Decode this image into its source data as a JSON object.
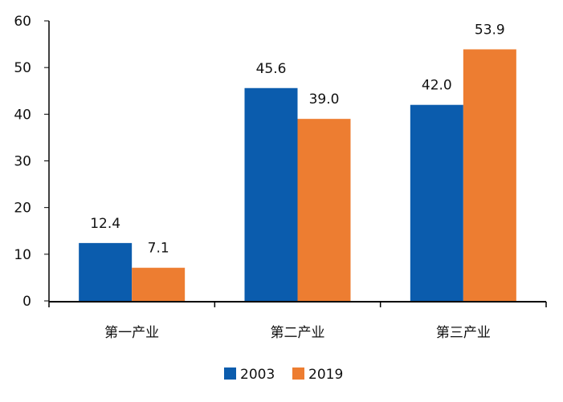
{
  "chart_data": {
    "type": "bar",
    "title": "",
    "xlabel": "",
    "ylabel": "",
    "ylim": [
      0,
      60
    ],
    "yticks": [
      "0",
      "10",
      "20",
      "30",
      "40",
      "50",
      "60"
    ],
    "categories": [
      "第一产业",
      "第二产业",
      "第三产业"
    ],
    "series": [
      {
        "name": "2003",
        "color": "#0b5cad",
        "values": [
          12.4,
          45.6,
          42.0
        ],
        "labels": [
          "12.4",
          "45.6",
          "42.0"
        ]
      },
      {
        "name": "2019",
        "color": "#ed7d31",
        "values": [
          7.1,
          39.0,
          53.9
        ],
        "labels": [
          "7.1",
          "39.0",
          "53.9"
        ]
      }
    ],
    "legend": "bottom",
    "grid": false
  }
}
